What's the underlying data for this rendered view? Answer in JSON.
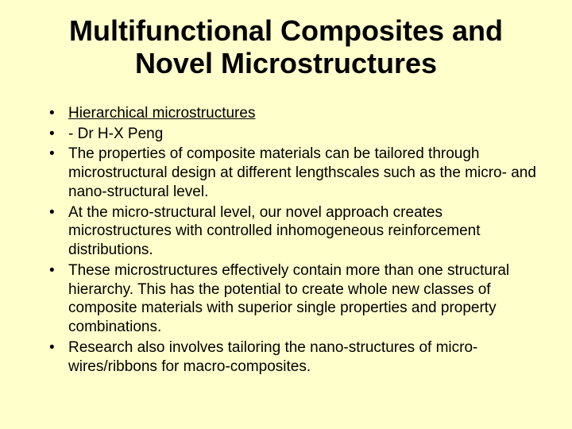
{
  "slide": {
    "title": "Multifunctional Composites and Novel Microstructures",
    "bullets": [
      {
        "text": "Hierarchical microstructures",
        "underline": true
      },
      {
        "text": "- Dr H-X Peng",
        "underline": false
      },
      {
        "text": "The properties of composite materials can be tailored through microstructural design at different lengthscales such as the micro- and nano-structural level.",
        "underline": false
      },
      {
        "text": "At the micro-structural level, our novel approach creates microstructures with controlled inhomogeneous reinforcement distributions.",
        "underline": false
      },
      {
        "text": "These microstructures effectively contain more than one structural hierarchy. This has the potential to create whole new classes of composite materials with superior single properties and property combinations.",
        "underline": false
      },
      {
        "text": "Research also involves tailoring the nano-structures of micro-wires/ribbons for macro-composites.",
        "underline": false
      }
    ],
    "background_color": "#ffffcc",
    "text_color": "#000000",
    "title_fontsize": 36,
    "body_fontsize": 19
  }
}
